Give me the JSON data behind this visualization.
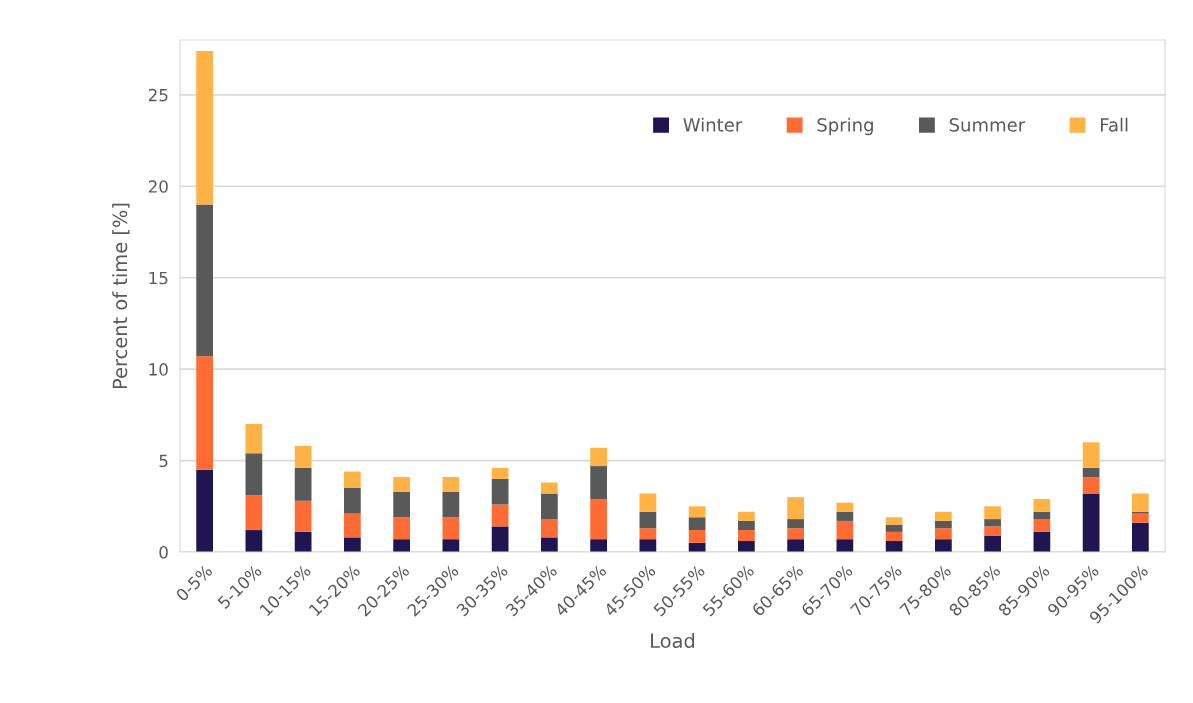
{
  "chart_data": {
    "type": "bar",
    "stacked": true,
    "xlabel": "Load",
    "ylabel": "Percent of time [%]",
    "categories": [
      "0-5%",
      "5-10%",
      "10-15%",
      "15-20%",
      "20-25%",
      "25-30%",
      "30-35%",
      "35-40%",
      "40-45%",
      "45-50%",
      "50-55%",
      "55-60%",
      "60-65%",
      "65-70%",
      "70-75%",
      "75-80%",
      "80-85%",
      "85-90%",
      "90-95%",
      "95-100%"
    ],
    "series": [
      {
        "name": "Winter",
        "color": "#211551",
        "values": [
          4.5,
          1.2,
          1.1,
          0.8,
          0.7,
          0.7,
          1.4,
          0.8,
          0.7,
          0.7,
          0.5,
          0.6,
          0.7,
          0.7,
          0.6,
          0.7,
          0.9,
          1.1,
          3.2,
          1.6
        ]
      },
      {
        "name": "Spring",
        "color": "#ff6b35",
        "values": [
          6.2,
          1.9,
          1.7,
          1.3,
          1.2,
          1.2,
          1.2,
          1.0,
          2.2,
          0.6,
          0.7,
          0.6,
          0.6,
          1.0,
          0.5,
          0.6,
          0.5,
          0.7,
          0.9,
          0.5
        ]
      },
      {
        "name": "Summer",
        "color": "#595959",
        "values": [
          8.3,
          2.3,
          1.8,
          1.4,
          1.4,
          1.4,
          1.4,
          1.4,
          1.8,
          0.9,
          0.7,
          0.5,
          0.5,
          0.5,
          0.4,
          0.4,
          0.4,
          0.4,
          0.5,
          0.1
        ]
      },
      {
        "name": "Fall",
        "color": "#ffb347",
        "values": [
          8.4,
          1.6,
          1.2,
          0.9,
          0.8,
          0.8,
          0.6,
          0.6,
          1.0,
          1.0,
          0.6,
          0.5,
          1.2,
          0.5,
          0.4,
          0.5,
          0.7,
          0.7,
          1.4,
          1.0
        ]
      }
    ],
    "ylim": [
      0,
      28
    ],
    "yticks": [
      0,
      5,
      10,
      15,
      20,
      25
    ],
    "grid": "y",
    "legend": "top right"
  }
}
